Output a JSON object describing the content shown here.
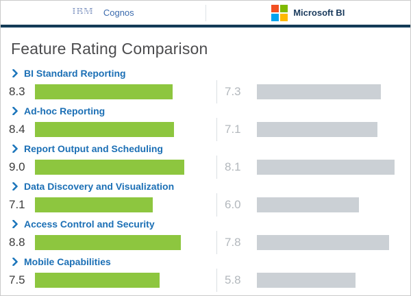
{
  "header": {
    "left_brand": {
      "logo": "ibm-logo",
      "label": "Cognos"
    },
    "right_brand": {
      "logo": "microsoft-logo",
      "label": "Microsoft BI",
      "logo_colors": [
        "#f25022",
        "#7fba00",
        "#00a4ef",
        "#ffb900"
      ]
    }
  },
  "title": "Feature Rating Comparison",
  "colors": {
    "ibm_logo": "#7e93c0",
    "label_blue": "#1b6fb5",
    "chevron_blue": "#1b75bb",
    "score_dark": "#3b3b3b",
    "score_gray": "#b3b8bd",
    "header_rule_navy": "#133a56",
    "divider_gray": "#dadfe3"
  },
  "chart_data": {
    "type": "bar",
    "orientation": "horizontal",
    "title": "Feature Rating Comparison",
    "categories": [
      "BI Standard Reporting",
      "Ad-hoc Reporting",
      "Report Output and Scheduling",
      "Data Discovery and Visualization",
      "Access Control and Security",
      "Mobile Capabilities"
    ],
    "series": [
      {
        "name": "IBM Cognos",
        "color": "#8dc63f",
        "values": [
          8.3,
          8.4,
          9.0,
          7.1,
          8.8,
          7.5
        ]
      },
      {
        "name": "Microsoft BI",
        "color": "#cbd0d5",
        "values": [
          7.3,
          7.1,
          8.1,
          6.0,
          7.8,
          5.8
        ]
      }
    ],
    "value_range": [
      0,
      10
    ],
    "value_labels": true,
    "grid": false,
    "legend_position": "top"
  }
}
